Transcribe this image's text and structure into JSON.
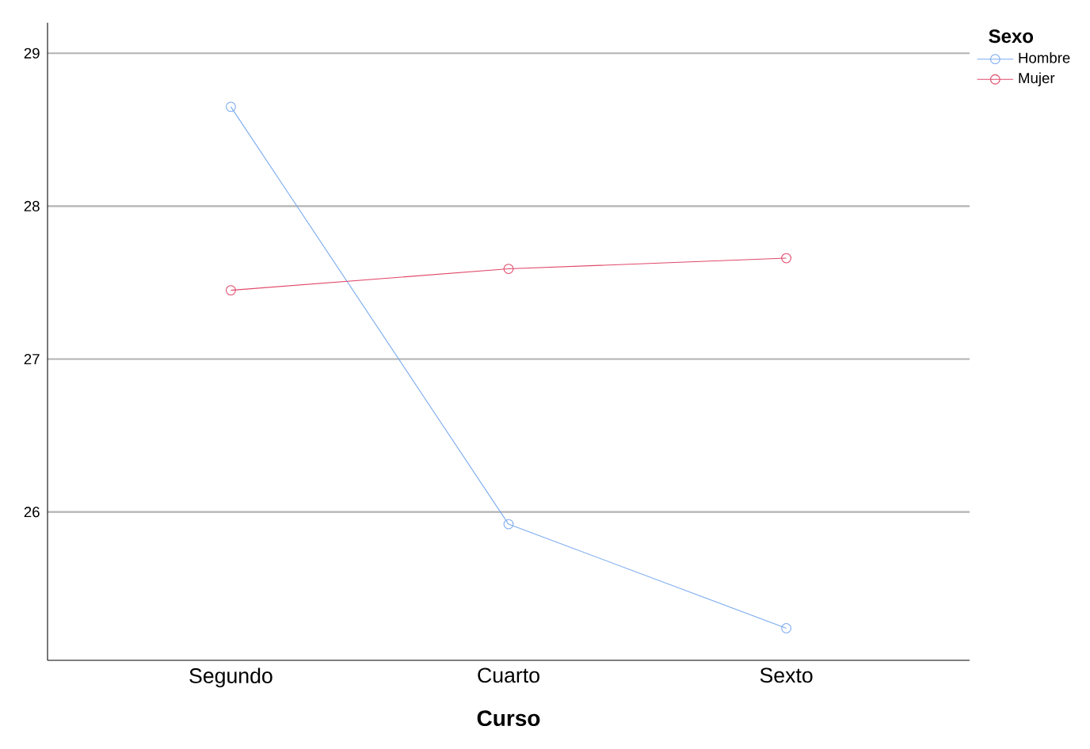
{
  "chart_data": {
    "type": "line",
    "xlabel": "Curso",
    "legend_title": "Sexo",
    "categories": [
      "Segundo",
      "Cuarto",
      "Sexto"
    ],
    "series": [
      {
        "name": "Hombre",
        "color": "#79a9ef",
        "values": [
          28.65,
          25.92,
          25.24
        ]
      },
      {
        "name": "Mujer",
        "color": "#e0486a",
        "values": [
          27.45,
          27.59,
          27.66
        ]
      }
    ],
    "ylim": [
      25.03,
      29.2
    ],
    "yticks": [
      26,
      27,
      28,
      29
    ],
    "grid": "y",
    "legend": "top right",
    "marker": "circle",
    "line_style": "solid"
  }
}
